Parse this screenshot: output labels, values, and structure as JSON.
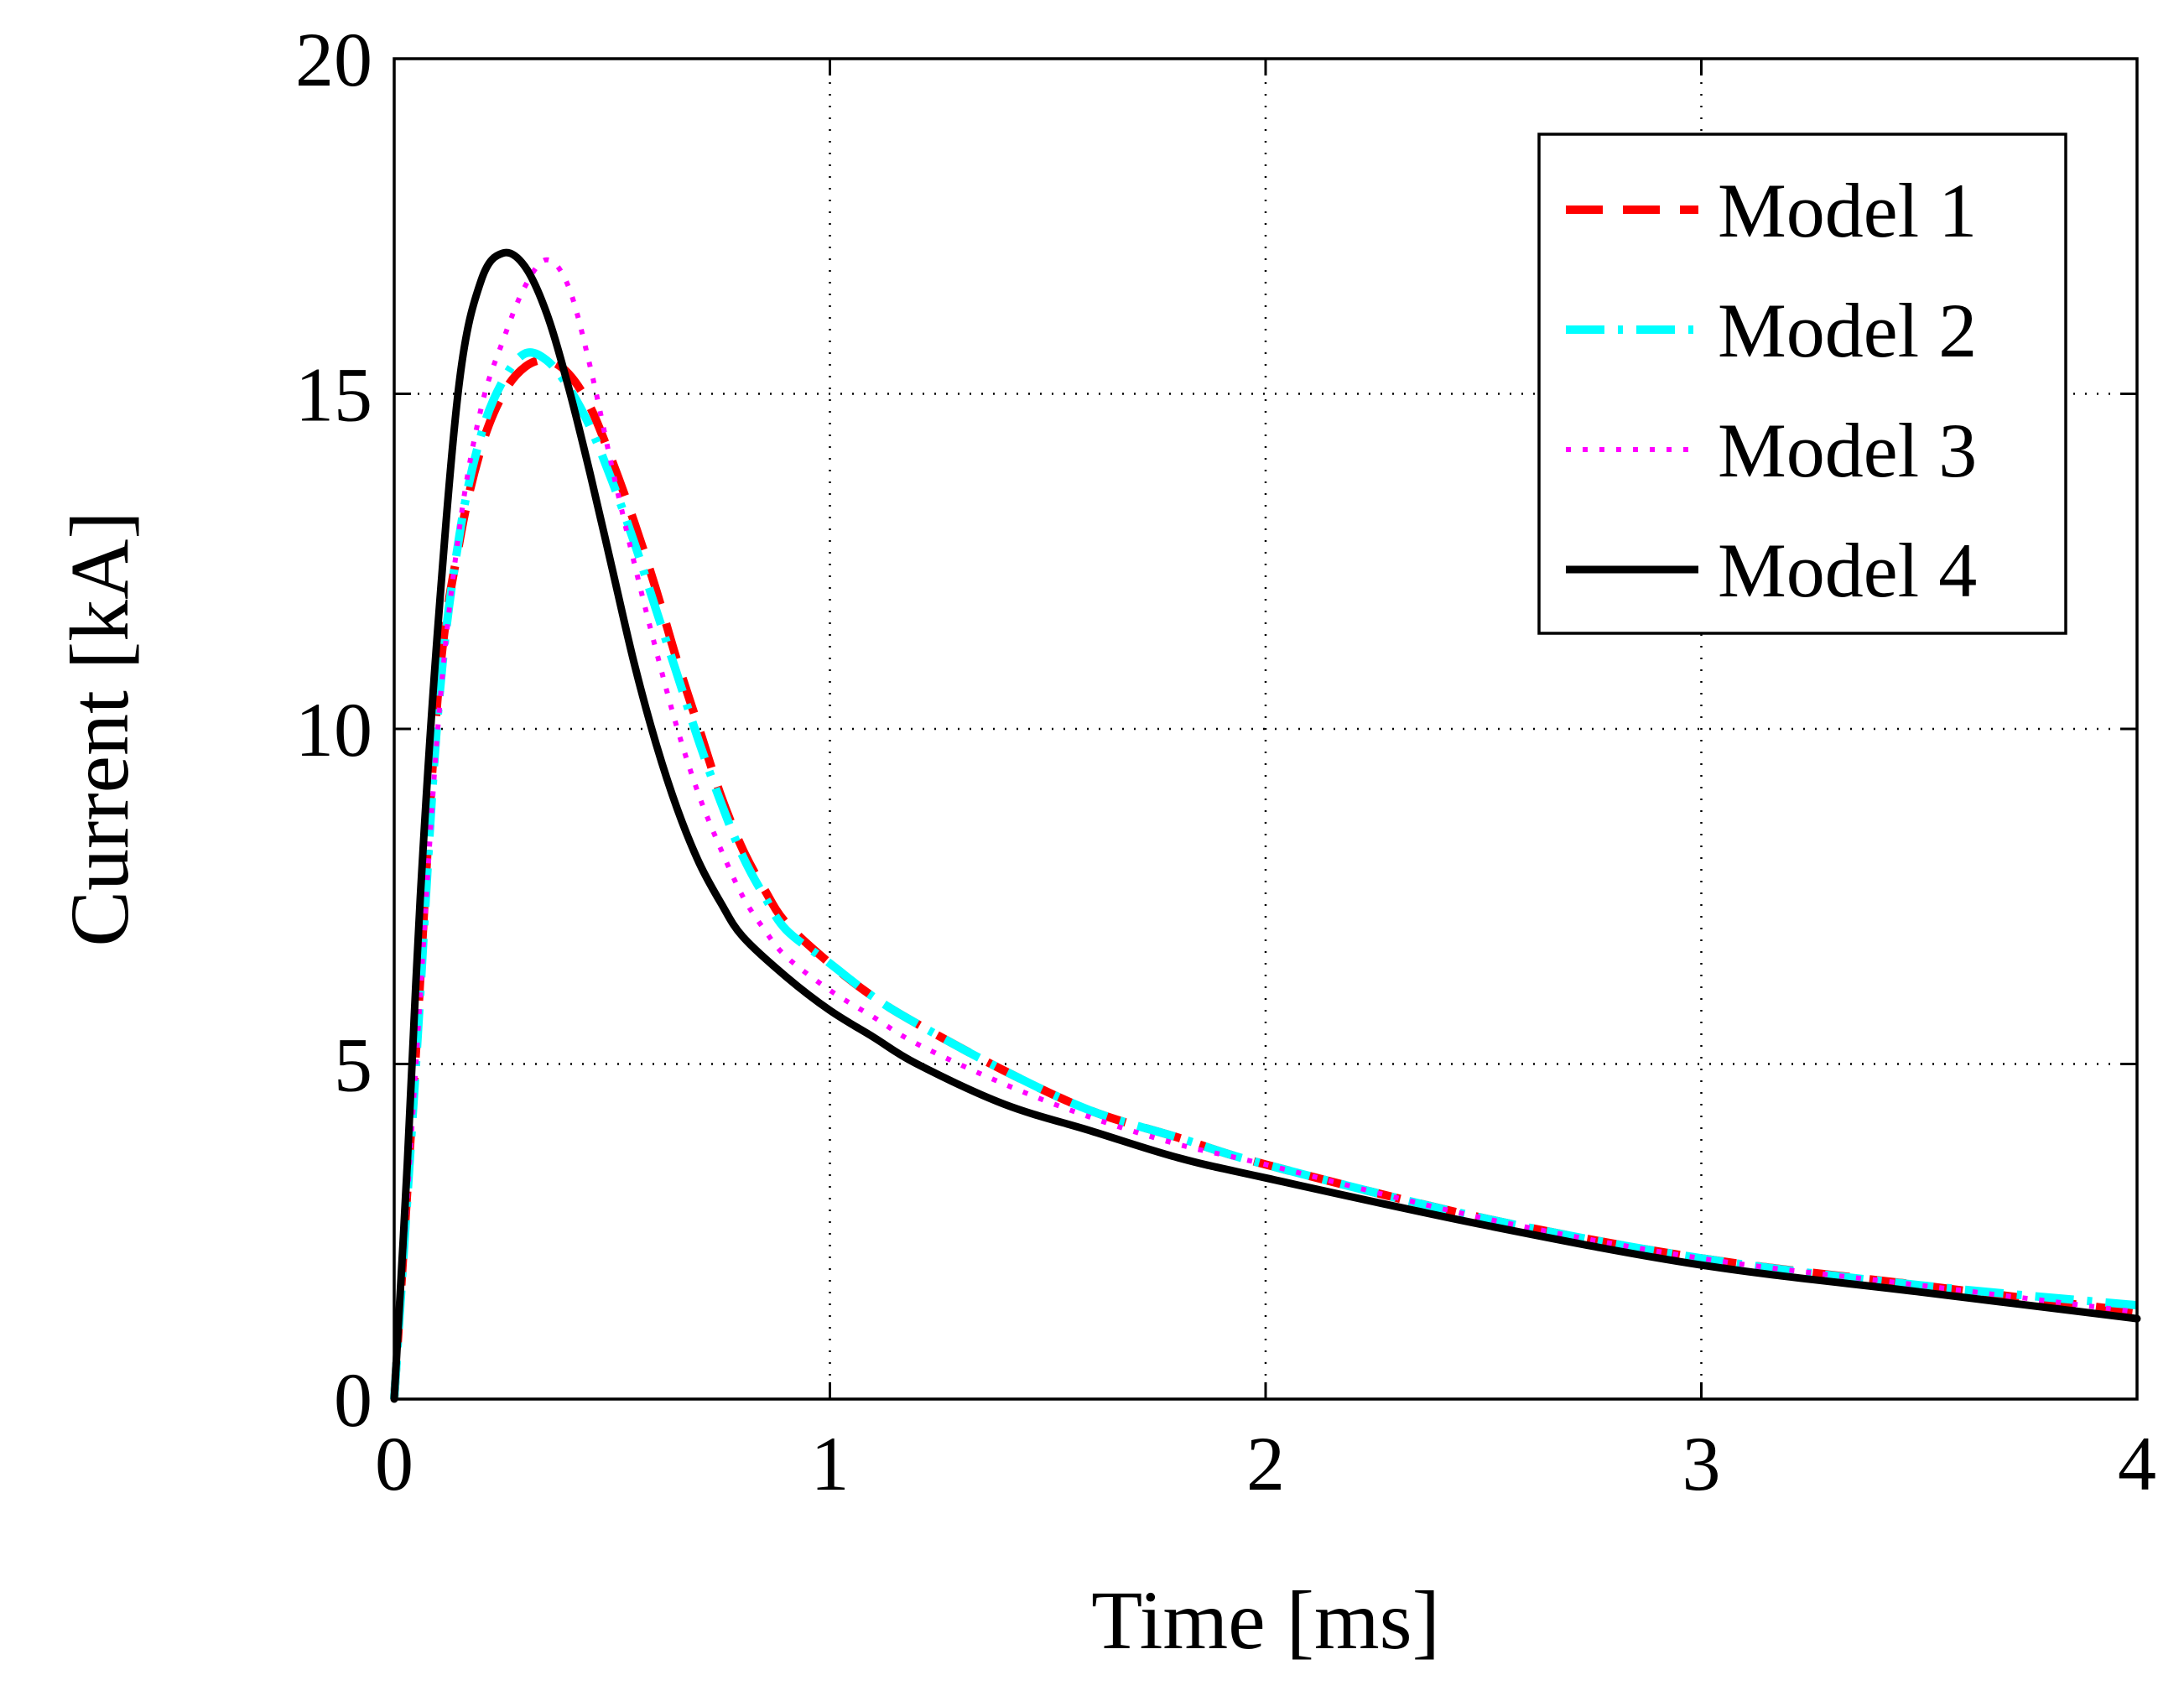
{
  "chart_data": {
    "type": "line",
    "xlabel": "Time [ms]",
    "ylabel": "Current [kA]",
    "xlim": [
      0,
      4
    ],
    "ylim": [
      0,
      20
    ],
    "xticks": [
      0,
      1,
      2,
      3,
      4
    ],
    "yticks": [
      0,
      5,
      10,
      15,
      20
    ],
    "grid": true,
    "legend_position": "top-right",
    "series": [
      {
        "name": "Model 1",
        "color": "#ff0000",
        "style": "dashed",
        "x": [
          0,
          0.05,
          0.1,
          0.15,
          0.2,
          0.25,
          0.3,
          0.35,
          0.4,
          0.45,
          0.5,
          0.55,
          0.6,
          0.65,
          0.7,
          0.75,
          0.8,
          0.85,
          0.9,
          1.0,
          1.1,
          1.2,
          1.4,
          1.6,
          1.8,
          2.0,
          2.5,
          3.0,
          3.5,
          4.0
        ],
        "y": [
          0,
          5.2,
          10.5,
          12.8,
          14.2,
          15.0,
          15.4,
          15.5,
          15.3,
          14.8,
          14.0,
          13.1,
          12.1,
          11.0,
          10.0,
          9.0,
          8.2,
          7.6,
          7.1,
          6.5,
          6.0,
          5.6,
          4.9,
          4.3,
          3.9,
          3.5,
          2.7,
          2.1,
          1.7,
          1.3
        ]
      },
      {
        "name": "Model 2",
        "color": "#00ffff",
        "style": "dash-dot",
        "x": [
          0,
          0.05,
          0.1,
          0.15,
          0.2,
          0.25,
          0.3,
          0.35,
          0.4,
          0.45,
          0.5,
          0.55,
          0.6,
          0.65,
          0.7,
          0.75,
          0.8,
          0.85,
          0.9,
          1.0,
          1.1,
          1.2,
          1.4,
          1.6,
          1.8,
          2.0,
          2.5,
          3.0,
          3.5,
          4.0
        ],
        "y": [
          0,
          5.0,
          10.2,
          12.9,
          14.4,
          15.2,
          15.6,
          15.5,
          15.1,
          14.5,
          13.7,
          12.8,
          11.8,
          10.8,
          9.8,
          8.9,
          8.1,
          7.5,
          7.0,
          6.5,
          6.0,
          5.6,
          4.9,
          4.3,
          3.9,
          3.5,
          2.7,
          2.1,
          1.7,
          1.4
        ]
      },
      {
        "name": "Model 3",
        "color": "#ff00ff",
        "style": "dotted",
        "x": [
          0,
          0.05,
          0.1,
          0.15,
          0.2,
          0.25,
          0.3,
          0.35,
          0.4,
          0.45,
          0.5,
          0.55,
          0.6,
          0.65,
          0.7,
          0.75,
          0.8,
          0.85,
          0.9,
          1.0,
          1.1,
          1.2,
          1.4,
          1.6,
          1.8,
          2.0,
          2.5,
          3.0,
          3.5,
          4.0
        ],
        "y": [
          0,
          5.0,
          10.0,
          13.0,
          14.8,
          15.8,
          16.6,
          17.0,
          16.6,
          15.4,
          13.9,
          12.5,
          11.2,
          10.0,
          9.0,
          8.2,
          7.5,
          7.0,
          6.6,
          6.1,
          5.7,
          5.3,
          4.7,
          4.2,
          3.8,
          3.5,
          2.7,
          2.1,
          1.7,
          1.3
        ]
      },
      {
        "name": "Model 4",
        "color": "#000000",
        "style": "solid",
        "x": [
          0,
          0.03,
          0.06,
          0.1,
          0.15,
          0.2,
          0.25,
          0.3,
          0.35,
          0.4,
          0.45,
          0.5,
          0.55,
          0.6,
          0.65,
          0.7,
          0.75,
          0.8,
          0.9,
          1.0,
          1.1,
          1.2,
          1.4,
          1.6,
          1.8,
          2.0,
          2.5,
          3.0,
          3.5,
          4.0
        ],
        "y": [
          0,
          3.5,
          7.5,
          11.5,
          15.2,
          16.7,
          17.1,
          16.9,
          16.2,
          15.1,
          13.8,
          12.4,
          11.0,
          9.8,
          8.8,
          8.0,
          7.4,
          6.9,
          6.3,
          5.8,
          5.4,
          5.0,
          4.4,
          4.0,
          3.6,
          3.3,
          2.6,
          2.0,
          1.6,
          1.2
        ]
      }
    ]
  }
}
